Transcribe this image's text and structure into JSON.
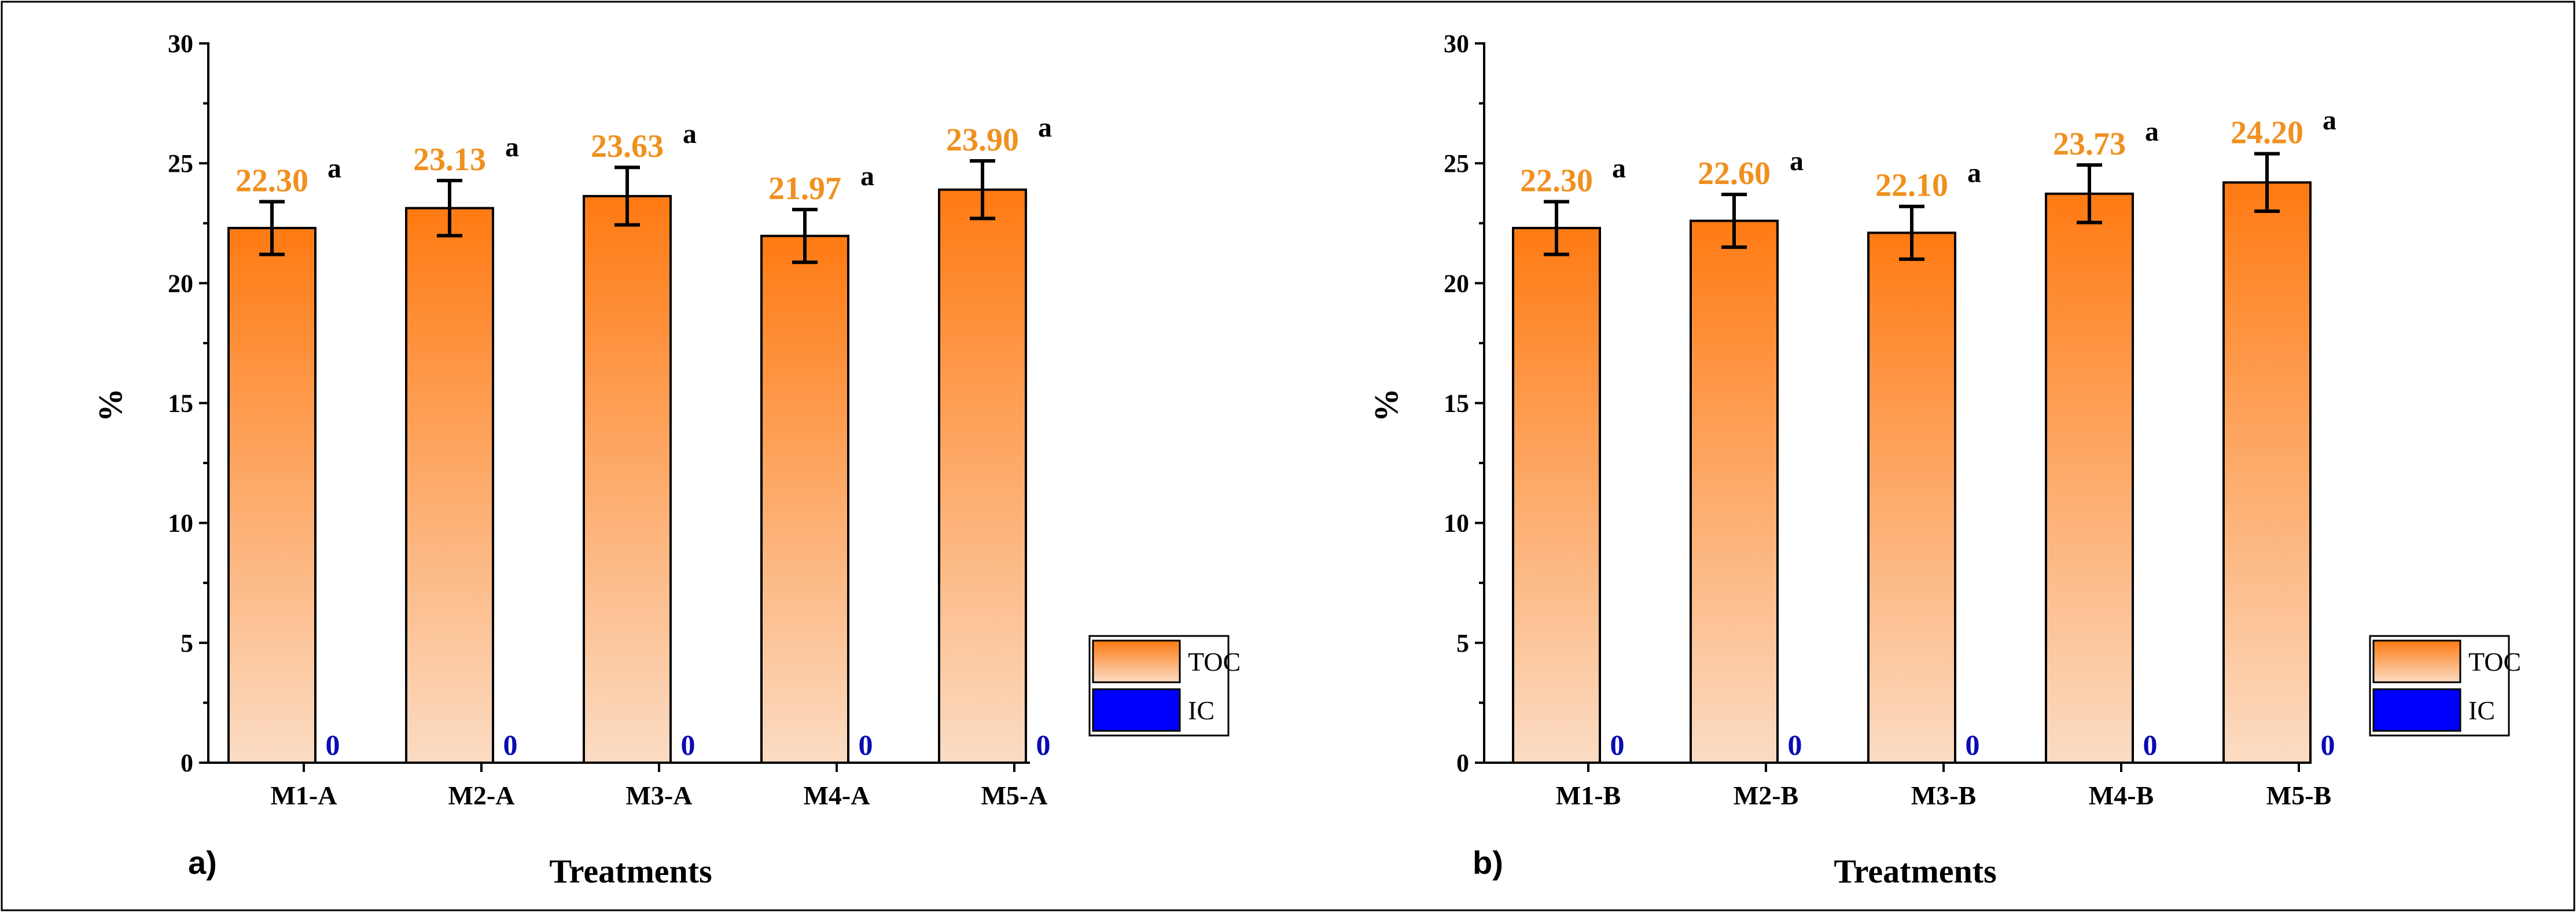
{
  "colors": {
    "toc_top": "#ff7a12",
    "toc_bottom": "#fbdcc4",
    "ic": "#0000ff",
    "value_label": "#f0901e",
    "zero_label": "#0a0ab4"
  },
  "chart_data": [
    {
      "type": "bar",
      "panel": "a)",
      "categories": [
        "M1-A",
        "M2-A",
        "M3-A",
        "M4-A",
        "M5-A"
      ],
      "series": [
        {
          "name": "TOC",
          "values": [
            22.3,
            23.13,
            23.63,
            21.97,
            23.9
          ],
          "error": [
            1.1,
            1.15,
            1.2,
            1.1,
            1.2
          ],
          "value_labels": [
            "22.30",
            "23.13",
            "23.63",
            "21.97",
            "23.90"
          ],
          "significance": [
            "a",
            "a",
            "a",
            "a",
            "a"
          ]
        },
        {
          "name": "IC",
          "values": [
            0,
            0,
            0,
            0,
            0
          ],
          "value_labels": [
            "0",
            "0",
            "0",
            "0",
            "0"
          ]
        }
      ],
      "xlabel": "Treatments",
      "ylabel": "%",
      "ylim": [
        0,
        30
      ],
      "yticks": [
        0,
        5,
        10,
        15,
        20,
        25,
        30
      ],
      "legend": [
        "TOC",
        "IC"
      ],
      "legend_position": "bottom-right"
    },
    {
      "type": "bar",
      "panel": "b)",
      "categories": [
        "M1-B",
        "M2-B",
        "M3-B",
        "M4-B",
        "M5-B"
      ],
      "series": [
        {
          "name": "TOC",
          "values": [
            22.3,
            22.6,
            22.1,
            23.73,
            24.2
          ],
          "error": [
            1.1,
            1.1,
            1.1,
            1.2,
            1.2
          ],
          "value_labels": [
            "22.30",
            "22.60",
            "22.10",
            "23.73",
            "24.20"
          ],
          "significance": [
            "a",
            "a",
            "a",
            "a",
            "a"
          ]
        },
        {
          "name": "IC",
          "values": [
            0,
            0,
            0,
            0,
            0
          ],
          "value_labels": [
            "0",
            "0",
            "0",
            "0",
            "0"
          ]
        }
      ],
      "xlabel": "Treatments",
      "ylabel": "%",
      "ylim": [
        0,
        30
      ],
      "yticks": [
        0,
        5,
        10,
        15,
        20,
        25,
        30
      ],
      "legend": [
        "TOC",
        "IC"
      ],
      "legend_position": "bottom-right"
    }
  ]
}
